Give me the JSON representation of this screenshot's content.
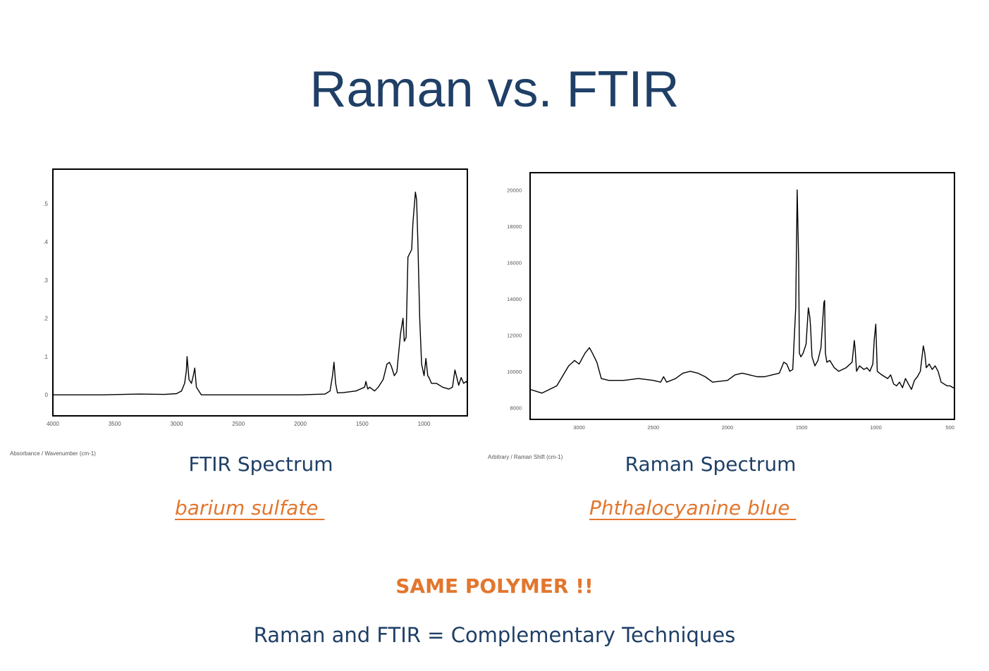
{
  "title": "Raman vs. FTIR",
  "chart_data": [
    {
      "type": "line",
      "name": "ftir",
      "caption": "FTIR Spectrum",
      "sample": "barium sulfate ",
      "axis_caption": "Absorbance / Wavenumber (cm-1)",
      "x_ticks": [
        4000,
        3500,
        3000,
        2500,
        2000,
        1500,
        1000
      ],
      "x_tick_labels": [
        "4000",
        "3500",
        "3000",
        "2500",
        "2000",
        "1500",
        "1000"
      ],
      "y_ticks": [
        0,
        0.1,
        0.2,
        0.3,
        0.4,
        0.5
      ],
      "y_tick_labels": [
        "0",
        ".1",
        ".2",
        ".3",
        ".4",
        ".5"
      ],
      "xlim": [
        4000,
        650
      ],
      "ylim": [
        -0.055,
        0.59
      ],
      "x": [
        4000,
        3600,
        3300,
        3100,
        3000,
        2960,
        2935,
        2922,
        2915,
        2900,
        2880,
        2865,
        2853,
        2840,
        2800,
        2600,
        2300,
        2000,
        1800,
        1760,
        1740,
        1728,
        1715,
        1700,
        1650,
        1550,
        1480,
        1470,
        1455,
        1440,
        1400,
        1370,
        1330,
        1300,
        1280,
        1265,
        1240,
        1220,
        1190,
        1170,
        1160,
        1145,
        1130,
        1100,
        1090,
        1070,
        1060,
        1050,
        1035,
        1020,
        1000,
        985,
        970,
        960,
        940,
        900,
        850,
        800,
        770,
        750,
        720,
        700,
        680,
        660,
        650
      ],
      "y": [
        0.0,
        0.0,
        0.002,
        0.001,
        0.003,
        0.01,
        0.03,
        0.06,
        0.1,
        0.04,
        0.03,
        0.05,
        0.07,
        0.02,
        0.0,
        0.0,
        0.0,
        0.0,
        0.002,
        0.01,
        0.05,
        0.085,
        0.03,
        0.005,
        0.006,
        0.01,
        0.02,
        0.035,
        0.015,
        0.02,
        0.01,
        0.02,
        0.04,
        0.08,
        0.085,
        0.075,
        0.05,
        0.06,
        0.16,
        0.2,
        0.14,
        0.15,
        0.36,
        0.38,
        0.45,
        0.53,
        0.51,
        0.4,
        0.2,
        0.08,
        0.05,
        0.095,
        0.05,
        0.045,
        0.03,
        0.03,
        0.02,
        0.015,
        0.02,
        0.065,
        0.025,
        0.045,
        0.03,
        0.035,
        0.03
      ]
    },
    {
      "type": "line",
      "name": "raman",
      "caption": "Raman Spectrum",
      "sample": "Phthalocyanine blue ",
      "axis_caption": "Arbitrary / Raman Shift (cm-1)",
      "x_ticks": [
        3000,
        2500,
        2000,
        1500,
        1000,
        500
      ],
      "x_tick_labels": [
        "3000",
        "2500",
        "2000",
        "1500",
        "1000",
        "500"
      ],
      "y_ticks": [
        8000,
        10000,
        12000,
        14000,
        16000,
        18000,
        20000
      ],
      "y_tick_labels": [
        "8000",
        "10000",
        "12000",
        "14000",
        "16000",
        "18000",
        "20000"
      ],
      "xlim": [
        3330,
        470
      ],
      "ylim": [
        7350,
        20950
      ],
      "x": [
        3330,
        3250,
        3150,
        3070,
        3030,
        3000,
        2960,
        2930,
        2910,
        2880,
        2850,
        2800,
        2700,
        2600,
        2500,
        2450,
        2430,
        2410,
        2350,
        2300,
        2250,
        2200,
        2150,
        2100,
        2000,
        1950,
        1900,
        1850,
        1800,
        1750,
        1700,
        1650,
        1620,
        1600,
        1580,
        1560,
        1540,
        1530,
        1520,
        1515,
        1505,
        1490,
        1470,
        1455,
        1445,
        1440,
        1430,
        1410,
        1390,
        1370,
        1350,
        1345,
        1340,
        1330,
        1310,
        1280,
        1250,
        1200,
        1160,
        1145,
        1140,
        1130,
        1110,
        1080,
        1060,
        1040,
        1020,
        1010,
        1000,
        990,
        975,
        960,
        940,
        920,
        900,
        880,
        860,
        840,
        820,
        800,
        780,
        760,
        740,
        720,
        700,
        680,
        670,
        660,
        640,
        620,
        600,
        580,
        560,
        540,
        520,
        500,
        480,
        470
      ],
      "y": [
        9000,
        8800,
        9200,
        10300,
        10600,
        10400,
        11000,
        11300,
        11000,
        10500,
        9600,
        9500,
        9500,
        9600,
        9500,
        9400,
        9700,
        9400,
        9600,
        9900,
        10000,
        9900,
        9700,
        9400,
        9500,
        9800,
        9900,
        9800,
        9700,
        9700,
        9800,
        9900,
        10500,
        10400,
        10000,
        10100,
        13500,
        20000,
        16000,
        11000,
        10800,
        11000,
        11500,
        13500,
        13000,
        12500,
        10800,
        10300,
        10600,
        11300,
        13800,
        13900,
        11000,
        10500,
        10600,
        10200,
        10000,
        10200,
        10500,
        11700,
        11300,
        10000,
        10300,
        10100,
        10200,
        10000,
        10400,
        11800,
        12600,
        10000,
        9900,
        9800,
        9700,
        9600,
        9800,
        9300,
        9200,
        9400,
        9100,
        9600,
        9300,
        9000,
        9500,
        9700,
        10000,
        11400,
        11000,
        10200,
        10400,
        10100,
        10300,
        10000,
        9400,
        9300,
        9200,
        9200,
        9100,
        9100
      ]
    }
  ],
  "same_polymer": "SAME POLYMER !!",
  "complement": "Raman and FTIR = Complementary Techniques"
}
